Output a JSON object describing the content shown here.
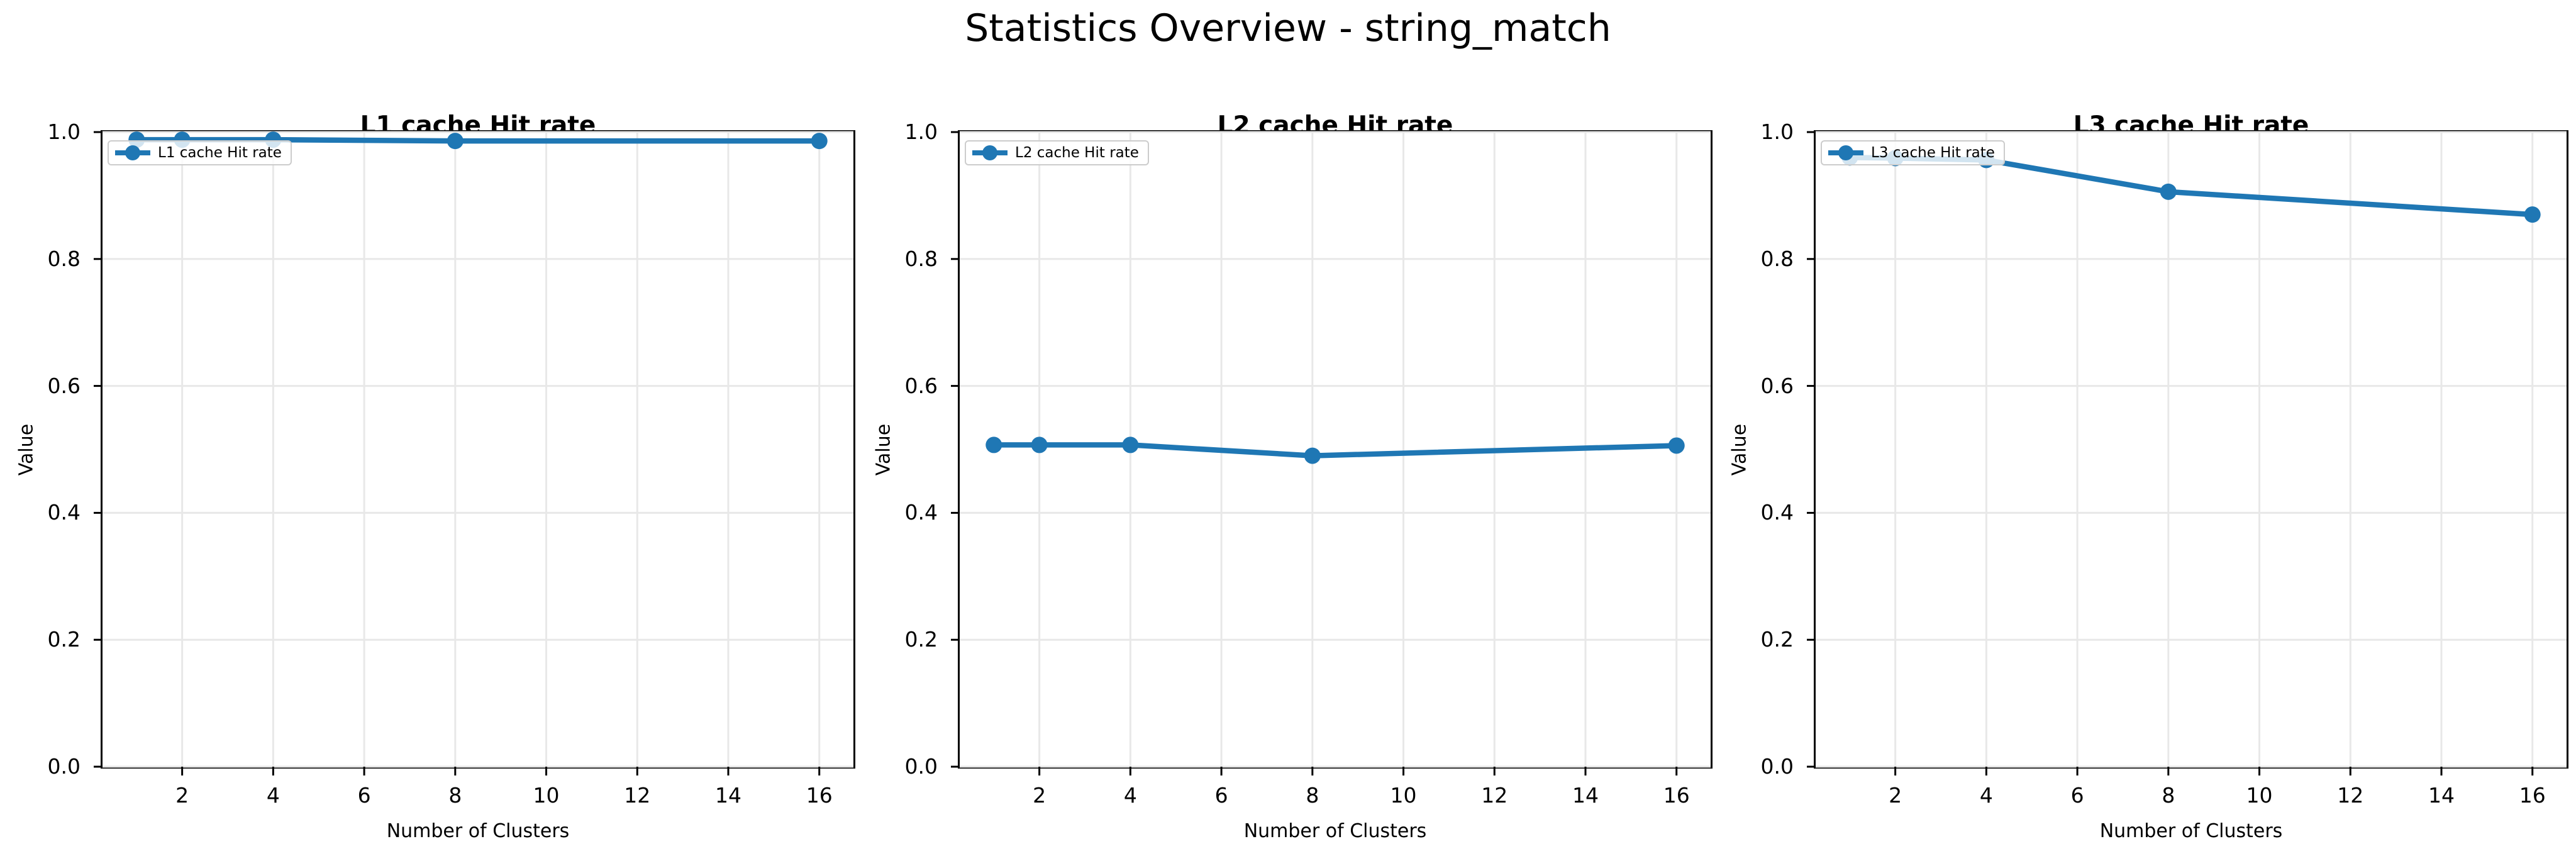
{
  "figure": {
    "suptitle": "Statistics Overview - string_match",
    "background": "#ffffff"
  },
  "chart_data": [
    {
      "type": "line",
      "title": "L1 cache Hit rate",
      "xlabel": "Number of Clusters",
      "ylabel": "Value",
      "x": [
        1,
        2,
        4,
        8,
        16
      ],
      "series": [
        {
          "name": "L1 cache Hit rate",
          "values": [
            0.988,
            0.988,
            0.988,
            0.986,
            0.986
          ]
        }
      ],
      "xlim": [
        0.25,
        16.75
      ],
      "ylim": [
        0.0,
        1.0
      ],
      "xticks": [
        2,
        4,
        6,
        8,
        10,
        12,
        14,
        16
      ],
      "xtick_labels": [
        "2",
        "4",
        "6",
        "8",
        "10",
        "12",
        "14",
        "16"
      ],
      "yticks": [
        0.0,
        0.2,
        0.4,
        0.6,
        0.8,
        1.0
      ],
      "ytick_labels": [
        "0.0",
        "0.2",
        "0.4",
        "0.6",
        "0.8",
        "1.0"
      ],
      "grid": true,
      "grid_color": "#e8e8e8",
      "line_color": "#1f77b4",
      "legend_position": "upper-left"
    },
    {
      "type": "line",
      "title": "L2 cache Hit rate",
      "xlabel": "Number of Clusters",
      "ylabel": "Value",
      "x": [
        1,
        2,
        4,
        8,
        16
      ],
      "series": [
        {
          "name": "L2 cache Hit rate",
          "values": [
            0.507,
            0.507,
            0.507,
            0.49,
            0.506
          ]
        }
      ],
      "xlim": [
        0.25,
        16.75
      ],
      "ylim": [
        0.0,
        1.0
      ],
      "xticks": [
        2,
        4,
        6,
        8,
        10,
        12,
        14,
        16
      ],
      "xtick_labels": [
        "2",
        "4",
        "6",
        "8",
        "10",
        "12",
        "14",
        "16"
      ],
      "yticks": [
        0.0,
        0.2,
        0.4,
        0.6,
        0.8,
        1.0
      ],
      "ytick_labels": [
        "0.0",
        "0.2",
        "0.4",
        "0.6",
        "0.8",
        "1.0"
      ],
      "grid": true,
      "grid_color": "#e8e8e8",
      "line_color": "#1f77b4",
      "legend_position": "upper-left"
    },
    {
      "type": "line",
      "title": "L3 cache Hit rate",
      "xlabel": "Number of Clusters",
      "ylabel": "Value",
      "x": [
        1,
        2,
        4,
        8,
        16
      ],
      "series": [
        {
          "name": "L3 cache Hit rate",
          "values": [
            0.96,
            0.959,
            0.956,
            0.906,
            0.87
          ]
        }
      ],
      "xlim": [
        0.25,
        16.75
      ],
      "ylim": [
        0.0,
        1.0
      ],
      "xticks": [
        2,
        4,
        6,
        8,
        10,
        12,
        14,
        16
      ],
      "xtick_labels": [
        "2",
        "4",
        "6",
        "8",
        "10",
        "12",
        "14",
        "16"
      ],
      "yticks": [
        0.0,
        0.2,
        0.4,
        0.6,
        0.8,
        1.0
      ],
      "ytick_labels": [
        "0.0",
        "0.2",
        "0.4",
        "0.6",
        "0.8",
        "1.0"
      ],
      "grid": true,
      "grid_color": "#e8e8e8",
      "line_color": "#1f77b4",
      "legend_position": "upper-left"
    }
  ]
}
